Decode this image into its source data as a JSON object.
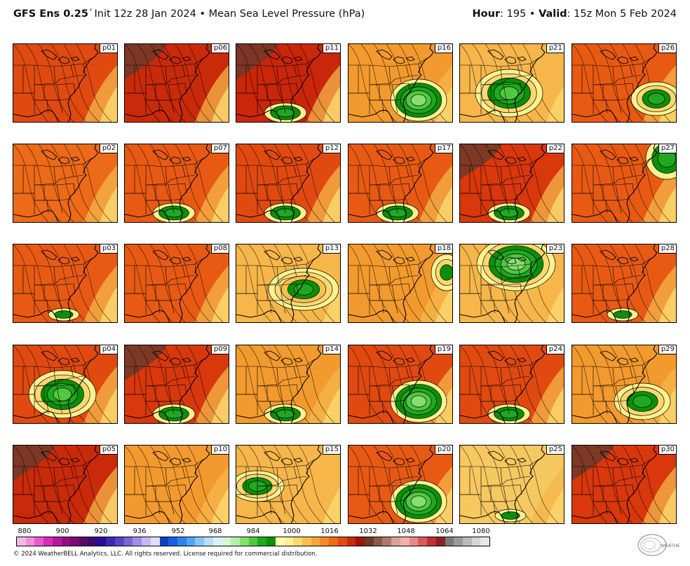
{
  "header": {
    "model": "GFS Ens 0.25",
    "degree_symbol": "°",
    "init_text": "Init 12z 28 Jan 2024",
    "separator": "•",
    "variable": "Mean Sea Level Pressure (hPa)",
    "hour_label": "Hour",
    "hour_value": ": 195",
    "valid_label": "Valid",
    "valid_value": ": 15z Mon 5 Feb 2024"
  },
  "panels": [
    {
      "label": "p01",
      "low": "none",
      "base": "#e04a10"
    },
    {
      "label": "p06",
      "low": "none",
      "base": "#c92a0a"
    },
    {
      "label": "p11",
      "low": "south",
      "base": "#c9260a"
    },
    {
      "label": "p16",
      "low": "strong-se",
      "base": "#f39a2e"
    },
    {
      "label": "p21",
      "low": "strong-sw",
      "base": "#f6b64a"
    },
    {
      "label": "p26",
      "low": "east",
      "base": "#e85a12"
    },
    {
      "label": "p02",
      "low": "none",
      "base": "#ec6a18"
    },
    {
      "label": "p07",
      "low": "south",
      "base": "#e85a14"
    },
    {
      "label": "p12",
      "low": "south",
      "base": "#e04a10"
    },
    {
      "label": "p17",
      "low": "south",
      "base": "#e85a14"
    },
    {
      "label": "p22",
      "low": "south",
      "base": "#d8380c"
    },
    {
      "label": "p27",
      "low": "northeast",
      "base": "#e85a14"
    },
    {
      "label": "p03",
      "low": "south-weak",
      "base": "#e85a14"
    },
    {
      "label": "p08",
      "low": "none",
      "base": "#e85a14"
    },
    {
      "label": "p13",
      "low": "center",
      "base": "#f6b64a"
    },
    {
      "label": "p18",
      "low": "northeast-weak",
      "base": "#f39a2e"
    },
    {
      "label": "p23",
      "low": "strong-n",
      "base": "#f6b64a"
    },
    {
      "label": "p28",
      "low": "south-weak",
      "base": "#e85a14"
    },
    {
      "label": "p04",
      "low": "strong-sw",
      "base": "#e04a10"
    },
    {
      "label": "p09",
      "low": "south",
      "base": "#d8380c"
    },
    {
      "label": "p14",
      "low": "south",
      "base": "#f39a2e"
    },
    {
      "label": "p19",
      "low": "strong-se",
      "base": "#e04a10"
    },
    {
      "label": "p24",
      "low": "south",
      "base": "#e04a10"
    },
    {
      "label": "p29",
      "low": "southeast",
      "base": "#f39a2e"
    },
    {
      "label": "p05",
      "low": "none",
      "base": "#c92a0a"
    },
    {
      "label": "p10",
      "low": "none",
      "base": "#f39a2e"
    },
    {
      "label": "p15",
      "low": "west",
      "base": "#f6b64a"
    },
    {
      "label": "p20",
      "low": "strong-se",
      "base": "#e85a14"
    },
    {
      "label": "p25",
      "low": "south-weak",
      "base": "#f6c860"
    },
    {
      "label": "p30",
      "low": "none",
      "base": "#d8380c"
    }
  ],
  "legend": {
    "ticks": [
      "880",
      "900",
      "920",
      "936",
      "952",
      "968",
      "984",
      "1000",
      "1016",
      "1032",
      "1048",
      "1064",
      "1080"
    ],
    "colors": [
      "#f7b8e8",
      "#f090dc",
      "#e85ad0",
      "#d82cb8",
      "#b8189c",
      "#980a84",
      "#7c0a70",
      "#5c0a60",
      "#3c0a74",
      "#2a0c9a",
      "#3c2ab4",
      "#5846c4",
      "#7a66d6",
      "#a090e4",
      "#c8b8f0",
      "#e0e0f4",
      "#1040c0",
      "#1860e0",
      "#2a84ec",
      "#50a4f2",
      "#86c4f6",
      "#b8def8",
      "#dcf2fa",
      "#d8f8d8",
      "#b4f0a8",
      "#86e070",
      "#50c840",
      "#20a820",
      "#089008",
      "#ffffb0",
      "#fff090",
      "#fcd870",
      "#f9c050",
      "#f6a838",
      "#f38a24",
      "#ec6a18",
      "#e04a10",
      "#c92a0a",
      "#a0140a",
      "#6e3a2a",
      "#8c5a4a",
      "#b07a6a",
      "#d8a09a",
      "#f2b0b0",
      "#e88888",
      "#d85a5a",
      "#c03030",
      "#902020",
      "#7a7a7a",
      "#9a9a9a",
      "#bababa",
      "#d4d4d4",
      "#e8e8e8"
    ],
    "copyright": "© 2024 WeatherBELL Analytics, LLC. All rights reserved. License required for commercial distribution.",
    "logo_text": "WEATHERBELL"
  }
}
